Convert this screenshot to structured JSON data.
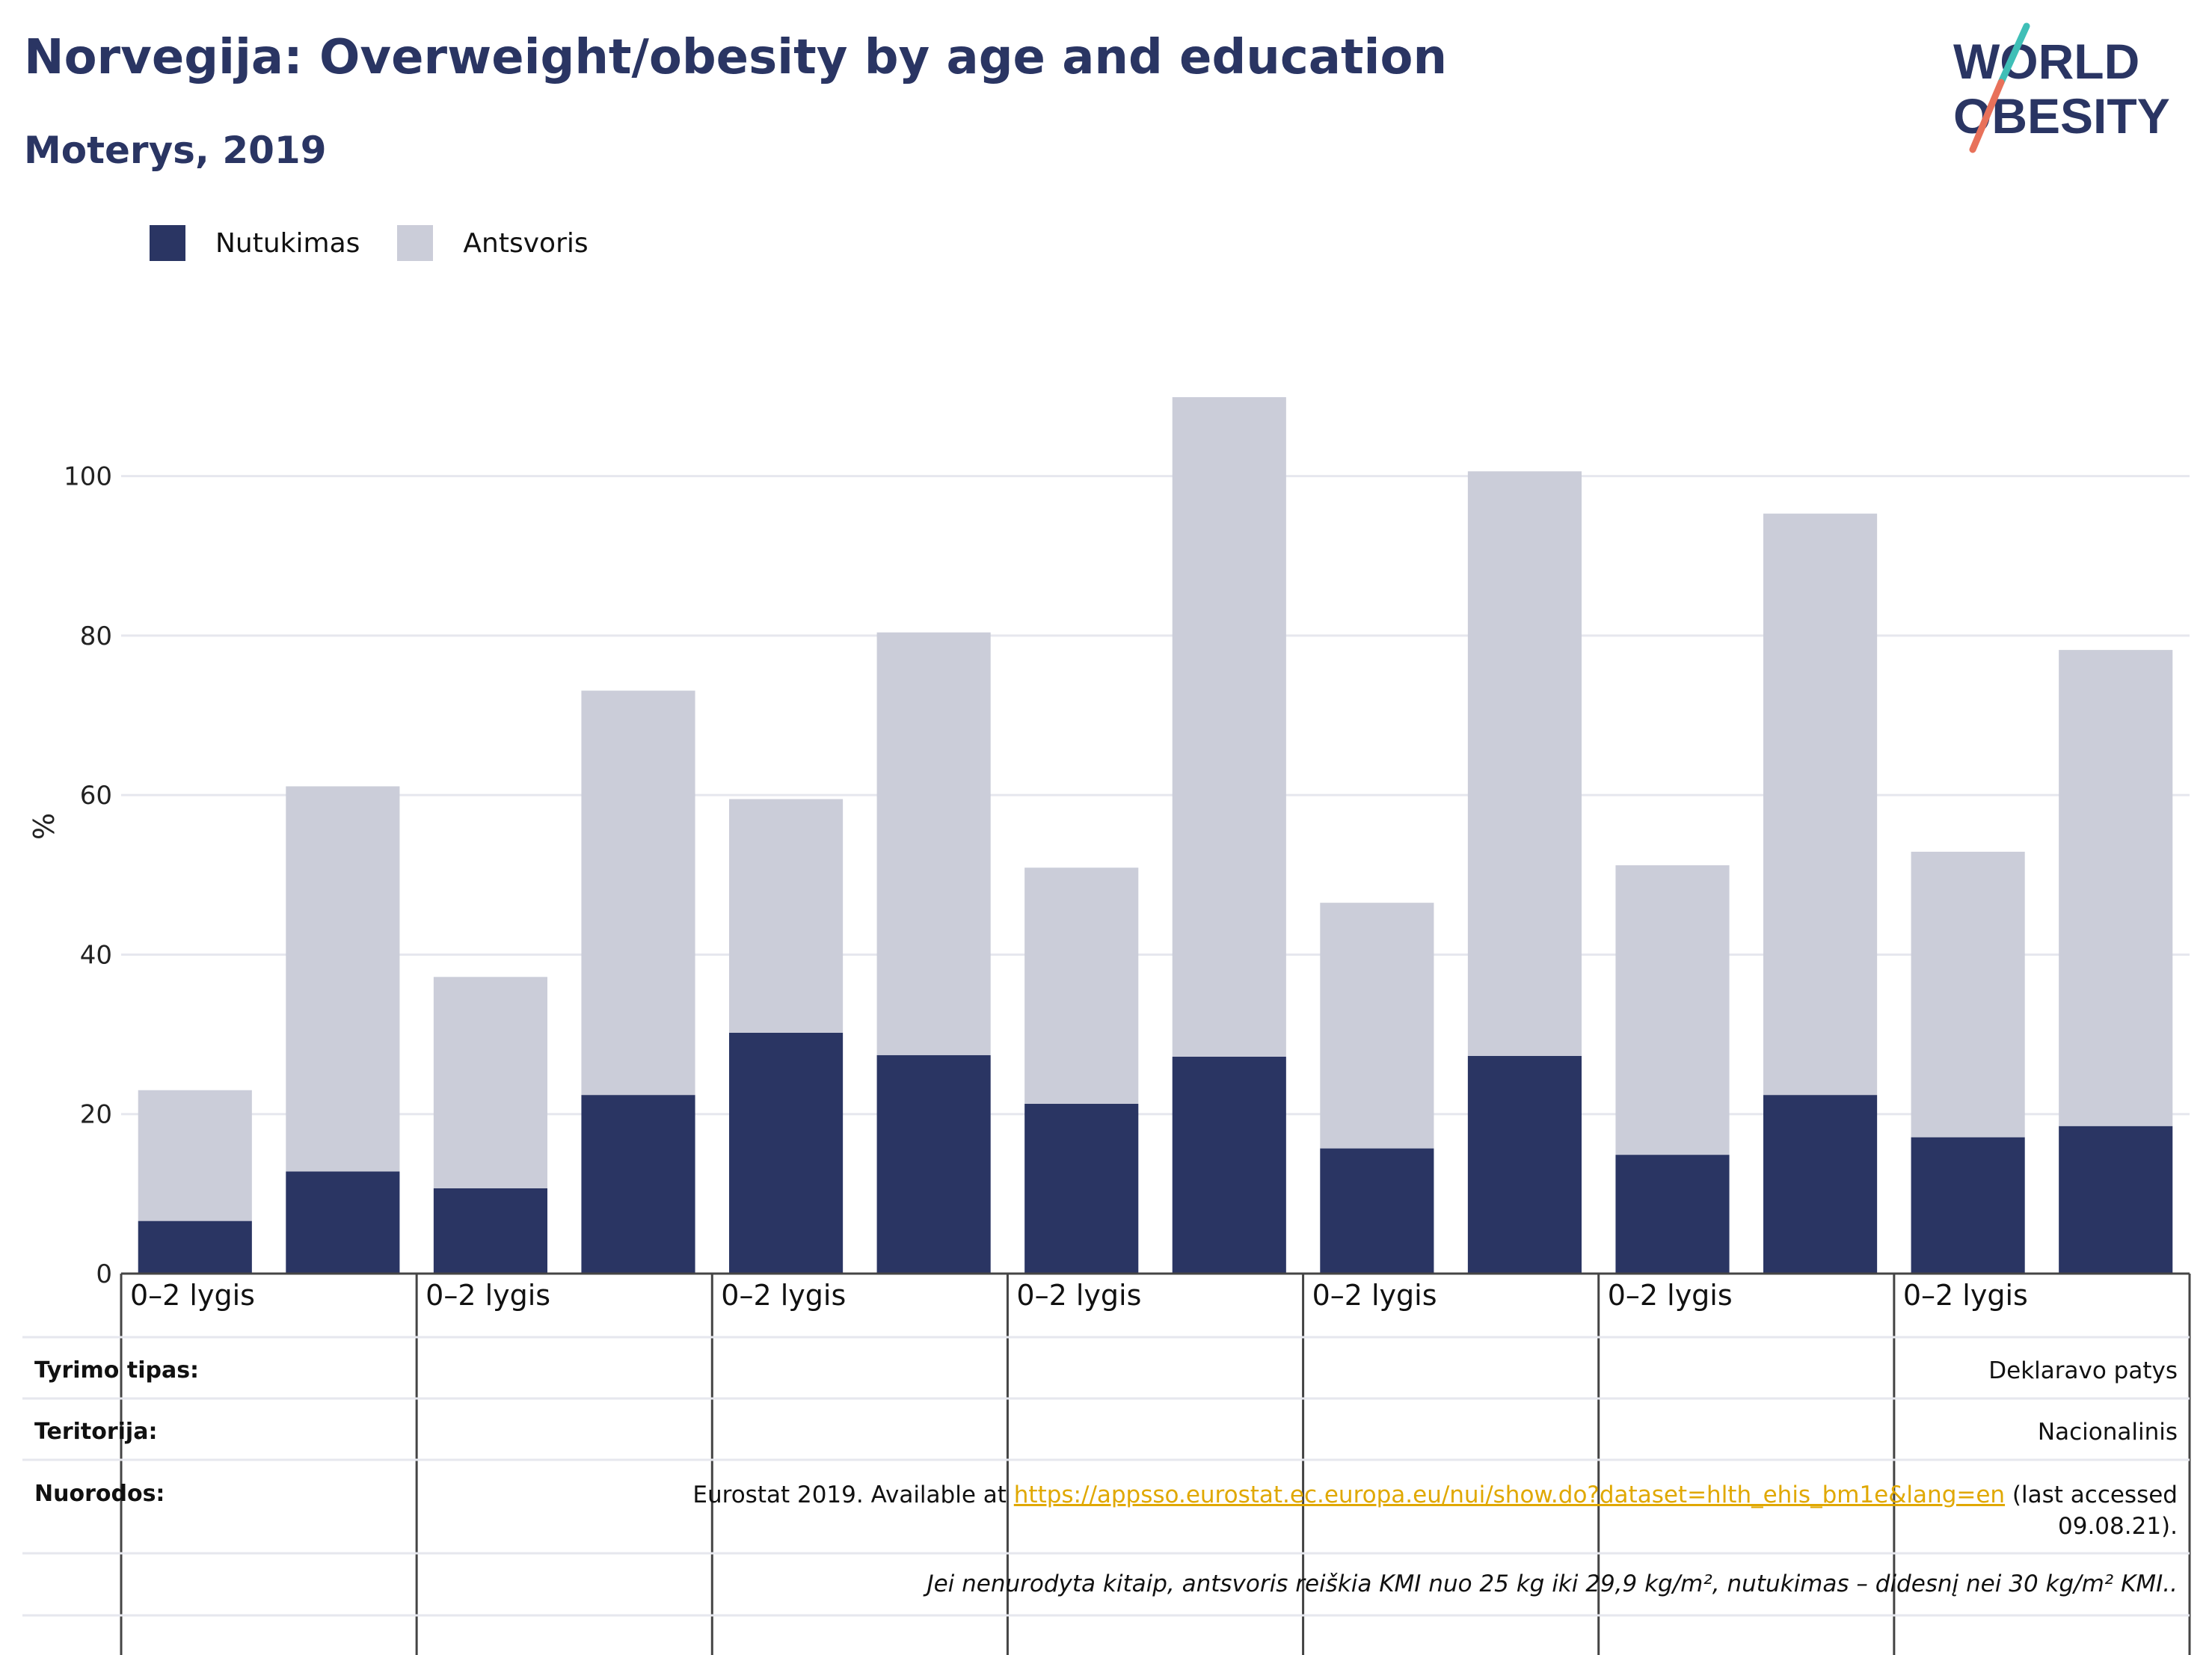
{
  "header": {
    "title": "Norvegija: Overweight/obesity by age and education",
    "subtitle": "Moterys, 2019"
  },
  "logo": {
    "line1": "WORLD",
    "line2": "OBESITY",
    "accent_colors": [
      "#3fbfb7",
      "#e8715a"
    ]
  },
  "legend": [
    {
      "label": "Nutukimas",
      "color": "#2a3563"
    },
    {
      "label": "Antsvoris",
      "color": "#cbcdd9"
    }
  ],
  "chart_data": {
    "type": "bar",
    "stacked": true,
    "categories": [
      "0–2 lygis",
      "",
      "0–2 lygis",
      "",
      "0–2 lygis",
      "",
      "0–2 lygis",
      "",
      "0–2 lygis",
      "",
      "0–2 lygis",
      "",
      "0–2 lygis",
      ""
    ],
    "series": [
      {
        "name": "Nutukimas",
        "color": "#2a3563",
        "values": [
          6.6,
          12.8,
          10.7,
          22.4,
          30.2,
          27.4,
          21.3,
          27.2,
          15.7,
          27.3,
          14.9,
          22.4,
          17.1,
          18.5
        ]
      },
      {
        "name": "Antsvoris",
        "color": "#cbcdd9",
        "values": [
          16.4,
          48.3,
          26.5,
          50.7,
          29.3,
          53.0,
          29.6,
          82.7,
          30.8,
          73.3,
          36.3,
          72.9,
          35.8,
          59.7
        ]
      }
    ],
    "ylabel": "%",
    "ylim": [
      0,
      110
    ],
    "yticks": [
      0,
      20,
      40,
      60,
      80,
      100
    ],
    "grid": true
  },
  "info": {
    "survey_type_label": "Tyrimo tipas:",
    "survey_type_value": "Deklaravo patys",
    "territory_label": "Teritorija:",
    "territory_value": "Nacionalinis",
    "references_label": "Nuorodos:",
    "references_prefix": "Eurostat 2019. Available at ",
    "references_link": "https://appsso.eurostat.ec.europa.eu/nui/show.do?dataset=hlth_ehis_bm1e&lang=en",
    "references_suffix": " (last accessed",
    "references_date": "09.08.21).",
    "note": "Jei nenurodyta kitaip, antsvoris reiškia KMI nuo 25 kg iki 29,9 kg/m², nutukimas – didesnį nei 30 kg/m² KMI.."
  }
}
